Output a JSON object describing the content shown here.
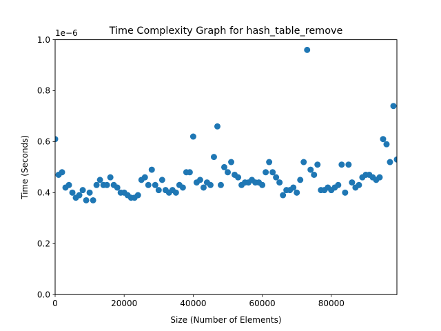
{
  "chart_data": {
    "type": "scatter",
    "title": "Time Complexity Graph for hash_table_remove",
    "xlabel": "Size (Number of Elements)",
    "ylabel": "Time (Seconds)",
    "y_multiplier_label": "1e−6",
    "xlim": [
      0,
      99000
    ],
    "ylim": [
      0,
      1.0
    ],
    "x_ticks": [
      0,
      20000,
      40000,
      60000,
      80000
    ],
    "x_tick_labels": [
      "0",
      "20000",
      "40000",
      "60000",
      "80000"
    ],
    "y_ticks": [
      0.0,
      0.2,
      0.4,
      0.6,
      0.8,
      1.0
    ],
    "y_tick_labels": [
      "0.0",
      "0.2",
      "0.4",
      "0.6",
      "0.8",
      "1.0"
    ],
    "grid": false,
    "marker_color": "#1f77b4",
    "series": [
      {
        "x": [
          0,
          1000,
          2000,
          3000,
          4000,
          5000,
          6000,
          7000,
          8000,
          9000,
          10000,
          11000,
          12000,
          13000,
          14000,
          15000,
          16000,
          17000,
          18000,
          19000,
          20000,
          21000,
          22000,
          23000,
          24000,
          25000,
          26000,
          27000,
          28000,
          29000,
          30000,
          31000,
          32000,
          33000,
          34000,
          35000,
          36000,
          37000,
          38000,
          39000,
          40000,
          41000,
          42000,
          43000,
          44000,
          45000,
          46000,
          47000,
          48000,
          49000,
          50000,
          51000,
          52000,
          53000,
          54000,
          55000,
          56000,
          57000,
          58000,
          59000,
          60000,
          61000,
          62000,
          63000,
          64000,
          65000,
          66000,
          67000,
          68000,
          69000,
          70000,
          71000,
          72000,
          73000,
          74000,
          75000,
          76000,
          77000,
          78000,
          79000,
          80000,
          81000,
          82000,
          83000,
          84000,
          85000,
          86000,
          87000,
          88000,
          89000,
          90000,
          91000,
          92000,
          93000,
          94000,
          95000,
          96000,
          97000,
          98000,
          99000
        ],
        "y": [
          0.61,
          0.47,
          0.48,
          0.42,
          0.43,
          0.4,
          0.38,
          0.39,
          0.41,
          0.37,
          0.4,
          0.37,
          0.43,
          0.45,
          0.43,
          0.43,
          0.46,
          0.43,
          0.42,
          0.4,
          0.4,
          0.39,
          0.38,
          0.38,
          0.39,
          0.45,
          0.46,
          0.43,
          0.49,
          0.43,
          0.41,
          0.45,
          0.41,
          0.4,
          0.41,
          0.4,
          0.43,
          0.42,
          0.48,
          0.48,
          0.62,
          0.44,
          0.45,
          0.42,
          0.44,
          0.43,
          0.54,
          0.66,
          0.43,
          0.5,
          0.48,
          0.52,
          0.47,
          0.46,
          0.43,
          0.44,
          0.44,
          0.45,
          0.44,
          0.44,
          0.43,
          0.48,
          0.52,
          0.48,
          0.46,
          0.44,
          0.39,
          0.41,
          0.41,
          0.42,
          0.4,
          0.45,
          0.52,
          0.96,
          0.49,
          0.47,
          0.51,
          0.41,
          0.41,
          0.42,
          0.41,
          0.42,
          0.43,
          0.51,
          0.4,
          0.51,
          0.44,
          0.42,
          0.43,
          0.46,
          0.47,
          0.47,
          0.46,
          0.45,
          0.46,
          0.61,
          0.59,
          0.52,
          0.74,
          0.53
        ]
      }
    ]
  }
}
